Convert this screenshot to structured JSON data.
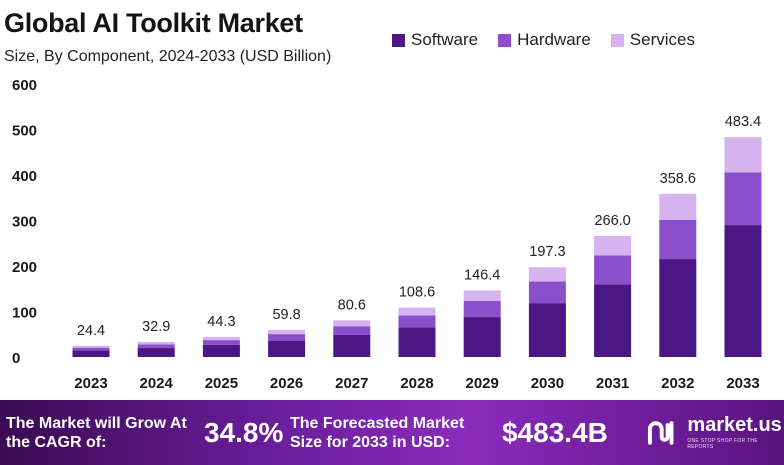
{
  "header": {
    "title": "Global AI Toolkit Market",
    "subtitle": "Size, By Component, 2024-2033 (USD Billion)"
  },
  "colors": {
    "software": "#4a1785",
    "hardware": "#8b4fcc",
    "services": "#d6b2ef"
  },
  "chart_data": {
    "type": "bar",
    "stacked": true,
    "title": "Global AI Toolkit Market",
    "subtitle": "Size, By Component, 2024-2033 (USD Billion)",
    "xlabel": "",
    "ylabel": "",
    "ylim": [
      0,
      600
    ],
    "yticks": [
      0,
      100,
      200,
      300,
      400,
      500,
      600
    ],
    "grid": false,
    "legend_position": "top-right",
    "categories": [
      "2023",
      "2024",
      "2025",
      "2026",
      "2027",
      "2028",
      "2029",
      "2030",
      "2031",
      "2032",
      "2033"
    ],
    "totals": [
      24.4,
      32.9,
      44.3,
      59.8,
      80.6,
      108.6,
      146.4,
      197.3,
      266.0,
      358.6,
      483.4
    ],
    "total_labels": [
      "24.4",
      "32.9",
      "44.3",
      "59.8",
      "80.6",
      "108.6",
      "146.4",
      "197.3",
      "266.0",
      "358.6",
      "483.4"
    ],
    "series": [
      {
        "name": "Software",
        "values": [
          14.6,
          19.7,
          26.6,
          35.9,
          48.4,
          65.2,
          87.8,
          118.4,
          159.6,
          215.2,
          290.0
        ]
      },
      {
        "name": "Hardware",
        "values": [
          5.9,
          7.9,
          10.6,
          14.4,
          19.3,
          26.1,
          35.2,
          47.4,
          63.8,
          86.0,
          116.0
        ]
      },
      {
        "name": "Services",
        "values": [
          3.9,
          5.3,
          7.1,
          9.5,
          12.9,
          17.3,
          23.4,
          31.5,
          42.6,
          57.4,
          77.4
        ]
      }
    ]
  },
  "footer": {
    "grow_text": "The Market will Grow At the CAGR of:",
    "cagr": "34.8%",
    "forecast_text": "The Forecasted Market Size for 2033 in USD:",
    "forecast_value": "$483.4B",
    "brand": "market.us",
    "tagline": "ONE STOP SHOP FOR THE REPORTS"
  }
}
